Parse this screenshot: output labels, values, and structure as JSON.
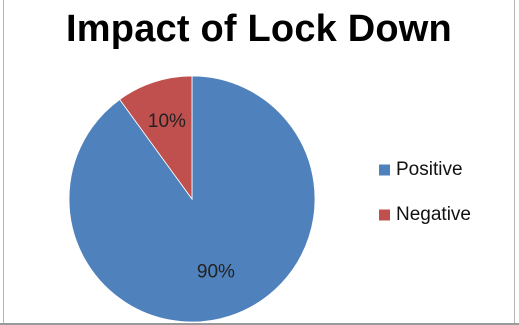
{
  "chart_data": {
    "type": "pie",
    "title": "Impact of Lock Down",
    "categories": [
      "Positive",
      "Negative"
    ],
    "values": [
      90,
      10
    ],
    "labels": [
      "90%",
      "10%"
    ],
    "colors": [
      "#4f81bd",
      "#c0504d"
    ],
    "legend_position": "right",
    "start": "12 o'clock",
    "direction": "clockwise"
  }
}
